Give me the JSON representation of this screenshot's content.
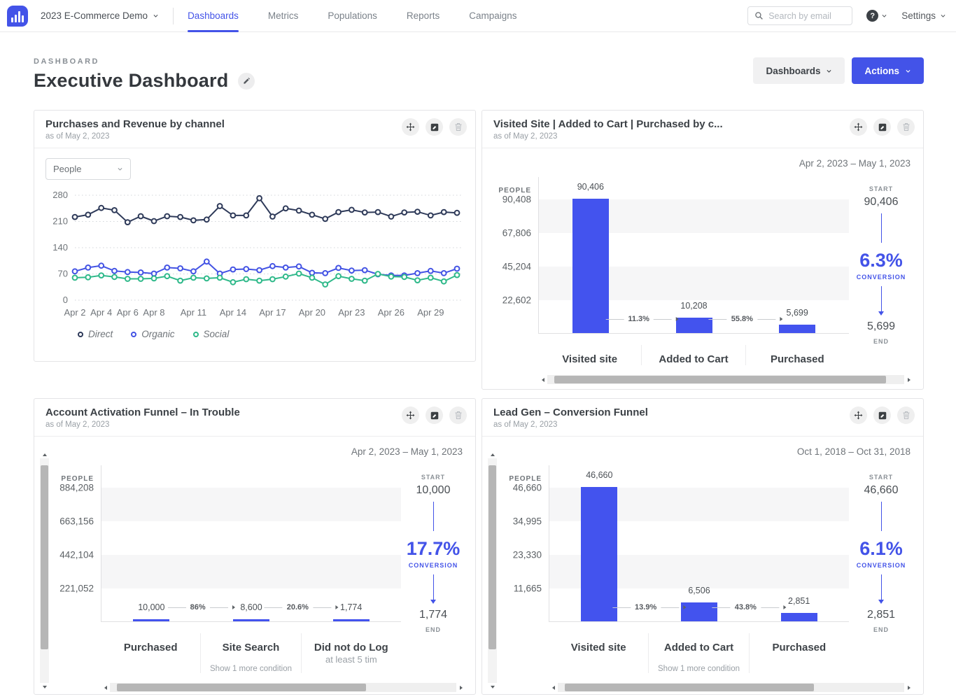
{
  "nav": {
    "project": "2023 E-Commerce Demo",
    "items": [
      "Dashboards",
      "Metrics",
      "Populations",
      "Reports",
      "Campaigns"
    ],
    "active_item": "Dashboards",
    "search_placeholder": "Search by email",
    "help": "?",
    "settings": "Settings",
    "icons": [
      "logo-barchart",
      "search",
      "help",
      "chevron-down"
    ]
  },
  "header": {
    "eyebrow": "DASHBOARD",
    "title": "Executive Dashboard",
    "dashboards_button": "Dashboards",
    "actions_button": "Actions"
  },
  "card_action_icons": [
    "move",
    "edit",
    "delete"
  ],
  "cards": [
    {
      "title": "Purchases and Revenue by channel",
      "as_of": "as of May 2, 2023",
      "metric_select": "People"
    },
    {
      "title": "Visited Site | Added to Cart | Purchased by c...",
      "as_of": "as of May 2, 2023"
    },
    {
      "title": "Account Activation Funnel – In Trouble",
      "as_of": "as of May 2, 2023"
    },
    {
      "title": "Lead Gen – Conversion Funnel",
      "as_of": "as of May 2, 2023"
    }
  ],
  "colors": {
    "accent": "#4353e8",
    "bar": "#4353ee",
    "direct": "#2e3a59",
    "organic": "#4353e4",
    "social": "#2fb98a",
    "band_gray": "#f6f6f7"
  },
  "chart_data": [
    {
      "type": "line",
      "title": "Purchases and Revenue by channel",
      "x_tick_labels": [
        "Apr 2",
        "Apr 4",
        "Apr 6",
        "Apr 8",
        "Apr 11",
        "Apr 14",
        "Apr 17",
        "Apr 20",
        "Apr 23",
        "Apr 26",
        "Apr 29"
      ],
      "x_tick_indices": [
        0,
        2,
        4,
        6,
        9,
        12,
        15,
        18,
        21,
        24,
        27
      ],
      "yticks": [
        0,
        70,
        140,
        210,
        280
      ],
      "ylim": [
        0,
        280
      ],
      "grid": "dotted-horizontal",
      "legend_position": "bottom",
      "series": [
        {
          "name": "Direct",
          "color": "#2e3a59",
          "values": [
            222,
            228,
            246,
            240,
            208,
            224,
            211,
            224,
            222,
            213,
            215,
            251,
            226,
            226,
            272,
            223,
            245,
            239,
            228,
            217,
            235,
            241,
            234,
            235,
            223,
            234,
            236,
            226,
            235,
            233
          ]
        },
        {
          "name": "Organic",
          "color": "#4353e4",
          "values": [
            77,
            87,
            92,
            78,
            75,
            74,
            71,
            87,
            85,
            77,
            103,
            71,
            82,
            83,
            80,
            91,
            87,
            90,
            73,
            72,
            86,
            79,
            80,
            69,
            66,
            66,
            72,
            78,
            72,
            84
          ]
        },
        {
          "name": "Social",
          "color": "#2fb98a",
          "values": [
            60,
            61,
            66,
            62,
            57,
            57,
            58,
            64,
            52,
            60,
            58,
            60,
            48,
            56,
            52,
            56,
            63,
            71,
            60,
            42,
            64,
            57,
            52,
            70,
            63,
            62,
            53,
            60,
            50,
            67
          ]
        }
      ]
    },
    {
      "type": "bar",
      "subtype": "funnel",
      "title": "Visited Site | Added to Cart | Purchased by c...",
      "date_range": "Apr 2, 2023 – May 1, 2023",
      "y_axis_label": "PEOPLE",
      "ymax": 90408,
      "yticks": [
        22602,
        45204,
        67806,
        90408
      ],
      "ytick_labels": [
        "22,602",
        "45,204",
        "67,806",
        "90,408"
      ],
      "steps": [
        {
          "label": "Visited site",
          "value": 90406,
          "value_label": "90,406"
        },
        {
          "label": "Added to Cart",
          "value": 10208,
          "value_label": "10,208"
        },
        {
          "label": "Purchased",
          "value": 5699,
          "value_label": "5,699"
        }
      ],
      "conversions": [
        "11.3%",
        "55.8%"
      ],
      "summary": {
        "start_label": "START",
        "start": "90,406",
        "conversion": "6.3%",
        "conversion_label": "CONVERSION",
        "end": "5,699",
        "end_label": "END"
      },
      "scrollbars": {
        "horizontal": true,
        "vertical": false,
        "h_thumb": {
          "left": "2%",
          "width": "93%"
        }
      }
    },
    {
      "type": "bar",
      "subtype": "funnel",
      "title": "Account Activation Funnel – In Trouble",
      "date_range": "Apr 2, 2023 – May 1, 2023",
      "y_axis_label": "PEOPLE",
      "ymax": 884208,
      "yticks": [
        221052,
        442104,
        663156,
        884208
      ],
      "ytick_labels": [
        "221,052",
        "442,104",
        "663,156",
        "884,208"
      ],
      "steps": [
        {
          "label": "Purchased",
          "value": 10000,
          "value_label": "10,000"
        },
        {
          "label": "Site Search",
          "value": 8600,
          "value_label": "8,600",
          "note": "Show 1 more condition"
        },
        {
          "label": "Did not do Log",
          "value": 1774,
          "value_label": "1,774",
          "sublabel": "at least 5 tim"
        }
      ],
      "conversions": [
        "86%",
        "20.6%"
      ],
      "summary": {
        "start_label": "START",
        "start": "10,000",
        "conversion": "17.7%",
        "conversion_label": "CONVERSION",
        "end": "1,774",
        "end_label": "END"
      },
      "scrollbars": {
        "horizontal": true,
        "vertical": true,
        "h_thumb": {
          "left": "2%",
          "width": "72%"
        },
        "v_thumb": {
          "top": "3%",
          "height": "82%"
        }
      }
    },
    {
      "type": "bar",
      "subtype": "funnel",
      "title": "Lead Gen – Conversion Funnel",
      "date_range": "Oct 1, 2018 – Oct 31, 2018",
      "y_axis_label": "PEOPLE",
      "ymax": 46660,
      "yticks": [
        11665,
        23330,
        34995,
        46660
      ],
      "ytick_labels": [
        "11,665",
        "23,330",
        "34,995",
        "46,660"
      ],
      "steps": [
        {
          "label": "Visited site",
          "value": 46660,
          "value_label": "46,660"
        },
        {
          "label": "Added to Cart",
          "value": 6506,
          "value_label": "6,506",
          "note": "Show 1 more condition"
        },
        {
          "label": "Purchased",
          "value": 2851,
          "value_label": "2,851"
        }
      ],
      "conversions": [
        "13.9%",
        "43.8%"
      ],
      "summary": {
        "start_label": "START",
        "start": "46,660",
        "conversion": "6.1%",
        "conversion_label": "CONVERSION",
        "end": "2,851",
        "end_label": "END"
      },
      "scrollbars": {
        "horizontal": true,
        "vertical": true,
        "h_thumb": {
          "left": "2%",
          "width": "72%"
        },
        "v_thumb": {
          "top": "3%",
          "height": "82%"
        }
      }
    }
  ]
}
